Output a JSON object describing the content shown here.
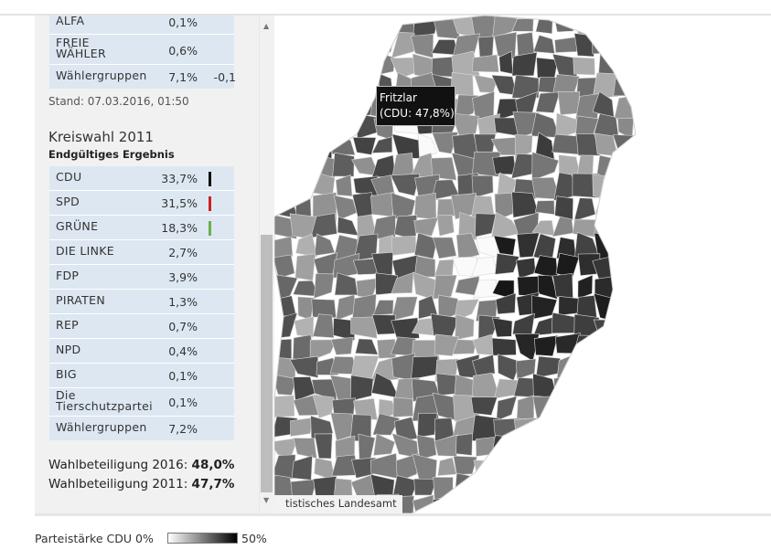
{
  "kreiswahl_2016_tail": {
    "rows": [
      {
        "name": "ALFA",
        "value": "0,1%",
        "diff": ""
      },
      {
        "name": "FREIE WÄHLER",
        "value": "0,6%",
        "diff": ""
      },
      {
        "name": "Wählergruppen",
        "value": "7,1%",
        "diff": "-0,1"
      }
    ],
    "stand": "Stand: 07.03.2016, 01:50"
  },
  "kreiswahl_2011": {
    "title": "Kreiswahl 2011",
    "subtitle": "Endgültiges Ergebnis",
    "rows": [
      {
        "name": "CDU",
        "value": "33,7%",
        "color": "#111111"
      },
      {
        "name": "SPD",
        "value": "31,5%",
        "color": "#cc2222"
      },
      {
        "name": "GRÜNE",
        "value": "18,3%",
        "color": "#6ab04c"
      },
      {
        "name": "DIE LINKE",
        "value": "2,7%"
      },
      {
        "name": "FDP",
        "value": "3,9%"
      },
      {
        "name": "PIRATEN",
        "value": "1,3%"
      },
      {
        "name": "REP",
        "value": "0,7%"
      },
      {
        "name": "NPD",
        "value": "0,4%"
      },
      {
        "name": "BIG",
        "value": "0,1%"
      },
      {
        "name": "Die Tierschutzpartei",
        "value": "0,1%"
      },
      {
        "name": "Wählergruppen",
        "value": "7,2%"
      }
    ]
  },
  "turnout": {
    "label_2016": "Wahlbeteiligung 2016:",
    "value_2016": "48,0%",
    "label_2011": "Wahlbeteiligung 2011:",
    "value_2011": "47,7%"
  },
  "map": {
    "tooltip_name": "Fritzlar",
    "tooltip_value": "(CDU: 47,8%)",
    "attribution": "tistisches Landesamt"
  },
  "legend": {
    "label": "Parteistärke CDU 0%",
    "max": "50%"
  },
  "scrollbar": {
    "up_icon": "triangle-up-icon",
    "down_icon": "triangle-down-icon"
  }
}
